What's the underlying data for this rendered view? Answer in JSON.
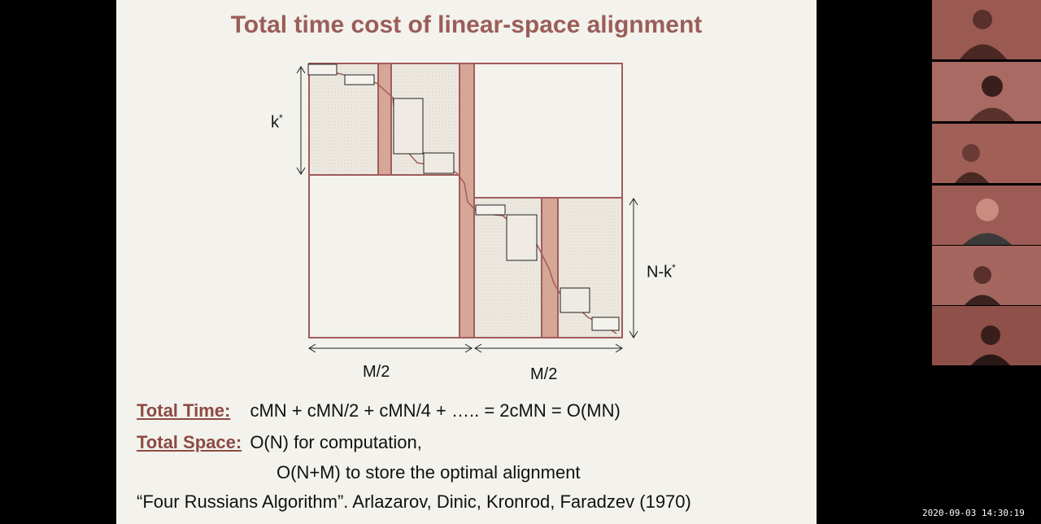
{
  "slide": {
    "title": "Total time cost of linear-space alignment",
    "diagram": {
      "k_label": "k",
      "k_sup": "*",
      "nk_label": "N-k",
      "nk_sup": "*",
      "m_half_left": "M/2",
      "m_half_right": "M/2"
    },
    "total_time_label": "Total Time:",
    "total_time_formula": "cMN + cMN/2 + cMN/4 + ….. = 2cMN = O(MN)",
    "total_space_label": "Total Space:",
    "total_space_value": "O(N) for computation,",
    "total_space_value2": "O(N+M) to store the optimal alignment",
    "citation": "“Four Russians Algorithm”. Arlazarov, Dinic, Kronrod, Faradzev (1970)"
  },
  "participants": [
    {
      "id": "participant-1",
      "tile_color": "#9a5a52"
    },
    {
      "id": "participant-2",
      "tile_color": "#a86a62"
    },
    {
      "id": "participant-3",
      "tile_color": "#a06058"
    },
    {
      "id": "participant-4",
      "tile_color": "#9c5c55"
    },
    {
      "id": "participant-5",
      "tile_color": "#a4665e"
    },
    {
      "id": "participant-6",
      "tile_color": "#8e5048"
    }
  ],
  "timestamp": "2020-09-03 14:30:19",
  "colors": {
    "slide_bg": "#f3f2ec",
    "accent": "#9b5d58",
    "grid_stroke": "#a25c5c",
    "shaded_fill": "#ebe6df",
    "column_fill": "#d6a696"
  }
}
